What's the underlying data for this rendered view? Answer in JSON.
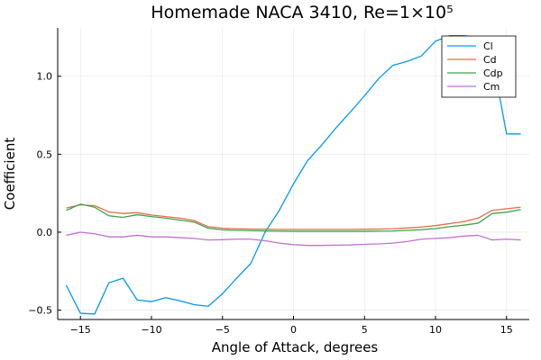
{
  "chart_data": {
    "type": "line",
    "title": "Homemade NACA 3410, Re=1×10⁵",
    "xlabel": "Angle of Attack, degrees",
    "ylabel": "Coefficient",
    "xlim": [
      -16.6,
      16.6
    ],
    "ylim": [
      -0.56,
      1.31
    ],
    "xticks": [
      -15,
      -10,
      -5,
      0,
      5,
      10,
      15
    ],
    "xtick_labels": [
      "−15",
      "−10",
      "−5",
      "0",
      "5",
      "10",
      "15"
    ],
    "yticks": [
      -0.5,
      0.0,
      0.5,
      1.0
    ],
    "ytick_labels": [
      "−0.5",
      "0.0",
      "0.5",
      "1.0"
    ],
    "grid": true,
    "legend_position": "top-right",
    "series": [
      {
        "name": "Cl",
        "color": "#009AFA",
        "x": [
          -16,
          -15,
          -14,
          -13,
          -12,
          -11,
          -10,
          -9,
          -8,
          -7,
          -6,
          -5,
          -4,
          -3,
          -2,
          -1,
          0,
          1,
          2,
          3,
          4,
          5,
          6,
          7,
          8,
          9,
          10,
          11,
          12,
          13,
          14,
          15,
          16
        ],
        "y": [
          -0.34,
          -0.52,
          -0.525,
          -0.325,
          -0.295,
          -0.435,
          -0.445,
          -0.42,
          -0.44,
          -0.465,
          -0.475,
          -0.395,
          -0.295,
          -0.2,
          0.0,
          0.14,
          0.31,
          0.46,
          0.56,
          0.67,
          0.77,
          0.875,
          0.985,
          1.07,
          1.095,
          1.13,
          1.225,
          1.26,
          1.26,
          1.25,
          1.12,
          0.63,
          0.63
        ]
      },
      {
        "name": "Cd",
        "color": "#E36F47",
        "x": [
          -16,
          -15,
          -14,
          -13,
          -12,
          -11,
          -10,
          -9,
          -8,
          -7,
          -6,
          -5,
          -4,
          -3,
          -2,
          -1,
          0,
          1,
          2,
          3,
          4,
          5,
          6,
          7,
          8,
          9,
          10,
          11,
          12,
          13,
          14,
          15,
          16
        ],
        "y": [
          0.155,
          0.175,
          0.17,
          0.13,
          0.12,
          0.125,
          0.11,
          0.1,
          0.09,
          0.075,
          0.035,
          0.025,
          0.022,
          0.02,
          0.019,
          0.018,
          0.018,
          0.018,
          0.018,
          0.018,
          0.018,
          0.019,
          0.02,
          0.022,
          0.027,
          0.033,
          0.042,
          0.055,
          0.068,
          0.09,
          0.14,
          0.15,
          0.16
        ]
      },
      {
        "name": "Cdp",
        "color": "#3EA44E",
        "x": [
          -16,
          -15,
          -14,
          -13,
          -12,
          -11,
          -10,
          -9,
          -8,
          -7,
          -6,
          -5,
          -4,
          -3,
          -2,
          -1,
          0,
          1,
          2,
          3,
          4,
          5,
          6,
          7,
          8,
          9,
          10,
          11,
          12,
          13,
          14,
          15,
          16
        ],
        "y": [
          0.14,
          0.18,
          0.16,
          0.105,
          0.095,
          0.112,
          0.1,
          0.09,
          0.078,
          0.065,
          0.025,
          0.015,
          0.012,
          0.01,
          0.008,
          0.007,
          0.006,
          0.006,
          0.006,
          0.006,
          0.006,
          0.006,
          0.007,
          0.008,
          0.012,
          0.016,
          0.023,
          0.035,
          0.045,
          0.058,
          0.12,
          0.128,
          0.145
        ]
      },
      {
        "name": "Cm",
        "color": "#C271D2",
        "x": [
          -16,
          -15,
          -14,
          -13,
          -12,
          -11,
          -10,
          -9,
          -8,
          -7,
          -6,
          -5,
          -4,
          -3,
          -2,
          -1,
          0,
          1,
          2,
          3,
          4,
          5,
          6,
          7,
          8,
          9,
          10,
          11,
          12,
          13,
          14,
          15,
          16
        ],
        "y": [
          -0.02,
          0.0,
          -0.01,
          -0.03,
          -0.03,
          -0.02,
          -0.03,
          -0.03,
          -0.035,
          -0.04,
          -0.05,
          -0.048,
          -0.045,
          -0.045,
          -0.055,
          -0.07,
          -0.08,
          -0.085,
          -0.085,
          -0.083,
          -0.082,
          -0.078,
          -0.075,
          -0.07,
          -0.06,
          -0.045,
          -0.04,
          -0.035,
          -0.025,
          -0.02,
          -0.05,
          -0.045,
          -0.05
        ]
      }
    ]
  }
}
